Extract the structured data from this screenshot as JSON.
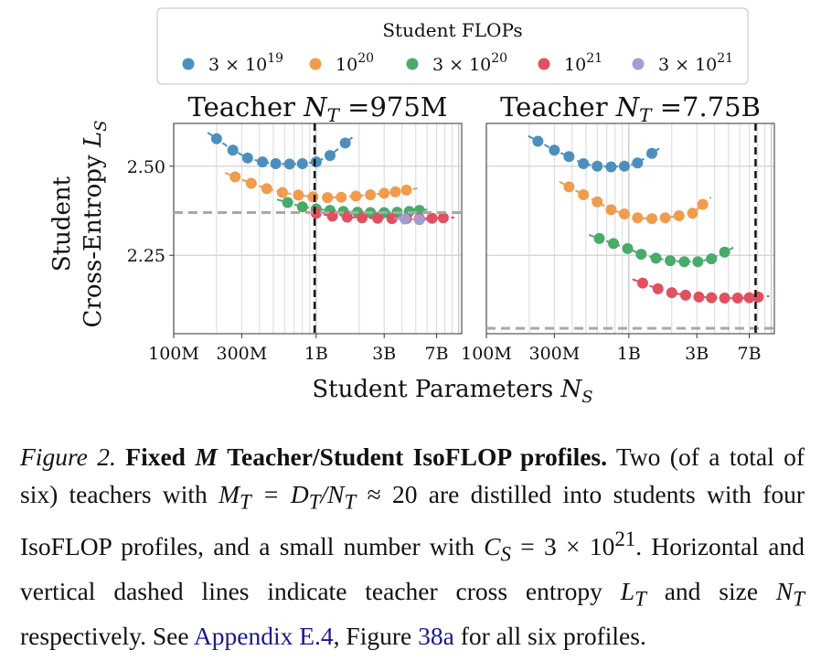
{
  "figure": {
    "legend": {
      "title": "Student FLOPs",
      "entries": [
        {
          "base": "3 × 10",
          "exp": "19",
          "color": "#4c8fbd"
        },
        {
          "base": "10",
          "exp": "20",
          "color": "#f09c4e"
        },
        {
          "base": "3 × 10",
          "exp": "20",
          "color": "#4aaa6a"
        },
        {
          "base": "10",
          "exp": "21",
          "color": "#e0505f"
        },
        {
          "base": "3 × 10",
          "exp": "21",
          "color": "#a99ad0"
        }
      ]
    },
    "y_label_line1": "Student",
    "y_label_line2": "Cross-Entropy",
    "y_label_symbol": "L",
    "y_label_sub": "S",
    "x_label": "Student Parameters",
    "x_label_symbol": "N",
    "x_label_sub": "S"
  },
  "chart_data": [
    {
      "type": "scatter",
      "title_prefix": "Teacher",
      "title_symbol": "N",
      "title_sub": "T",
      "title_suffix": "=975M",
      "xscale": "log",
      "xlim": [
        0.1,
        10.5
      ],
      "ylim": [
        2.03,
        2.62
      ],
      "xticks": [
        {
          "value": 0.1,
          "label": "100M"
        },
        {
          "value": 0.3,
          "label": "300M"
        },
        {
          "value": 1,
          "label": "1B"
        },
        {
          "value": 3,
          "label": "3B"
        },
        {
          "value": 7,
          "label": "7B"
        }
      ],
      "yticks": [
        {
          "value": 2.5,
          "label": "2.50"
        },
        {
          "value": 2.25,
          "label": "2.25"
        }
      ],
      "teacher_size": 0.975,
      "teacher_loss": 2.37,
      "series": [
        {
          "name": "3 × 10^19",
          "color": "#4c8fbd",
          "x": [
            0.2,
            0.26,
            0.33,
            0.42,
            0.52,
            0.65,
            0.8,
            1.0,
            1.25,
            1.6
          ],
          "y": [
            2.577,
            2.545,
            2.523,
            2.512,
            2.507,
            2.506,
            2.507,
            2.512,
            2.53,
            2.565
          ]
        },
        {
          "name": "10^20",
          "color": "#f09c4e",
          "x": [
            0.27,
            0.35,
            0.45,
            0.58,
            0.75,
            0.95,
            1.2,
            1.5,
            1.9,
            2.4,
            3.0,
            3.6,
            4.3
          ],
          "y": [
            2.47,
            2.452,
            2.437,
            2.426,
            2.419,
            2.414,
            2.412,
            2.413,
            2.416,
            2.42,
            2.424,
            2.428,
            2.433
          ]
        },
        {
          "name": "3 × 10^20",
          "color": "#4aaa6a",
          "x": [
            0.63,
            0.8,
            1.0,
            1.25,
            1.55,
            1.95,
            2.4,
            3.0,
            3.7,
            4.5,
            5.3
          ],
          "y": [
            2.398,
            2.386,
            2.38,
            2.376,
            2.373,
            2.371,
            2.37,
            2.37,
            2.371,
            2.373,
            2.376
          ]
        },
        {
          "name": "10^21",
          "color": "#e0505f",
          "x": [
            1.0,
            1.3,
            1.65,
            2.1,
            2.7,
            3.4,
            4.3,
            5.3,
            6.5,
            7.8
          ],
          "y": [
            2.368,
            2.36,
            2.357,
            2.355,
            2.354,
            2.353,
            2.353,
            2.353,
            2.354,
            2.355
          ]
        },
        {
          "name": "3 × 10^21",
          "color": "#a99ad0",
          "x": [
            4.2,
            5.3
          ],
          "y": [
            2.352,
            2.35
          ]
        }
      ]
    },
    {
      "type": "scatter",
      "title_prefix": "Teacher",
      "title_symbol": "N",
      "title_sub": "T",
      "title_suffix": "=7.75B",
      "xscale": "log",
      "xlim": [
        0.1,
        10.5
      ],
      "ylim": [
        2.03,
        2.62
      ],
      "xticks": [
        {
          "value": 0.1,
          "label": "100M"
        },
        {
          "value": 0.3,
          "label": "300M"
        },
        {
          "value": 1,
          "label": "1B"
        },
        {
          "value": 3,
          "label": "3B"
        },
        {
          "value": 7,
          "label": "7B"
        }
      ],
      "yticks": [
        {
          "value": 2.5,
          "label": ""
        },
        {
          "value": 2.25,
          "label": ""
        }
      ],
      "teacher_size": 7.75,
      "teacher_loss": 2.045,
      "series": [
        {
          "name": "3 × 10^19",
          "color": "#4c8fbd",
          "x": [
            0.23,
            0.3,
            0.38,
            0.48,
            0.6,
            0.75,
            0.93,
            1.15,
            1.45
          ],
          "y": [
            2.57,
            2.545,
            2.527,
            2.507,
            2.5,
            2.498,
            2.5,
            2.509,
            2.536
          ]
        },
        {
          "name": "10^20",
          "color": "#f09c4e",
          "x": [
            0.38,
            0.48,
            0.6,
            0.75,
            0.93,
            1.15,
            1.45,
            1.8,
            2.25,
            2.8,
            3.3
          ],
          "y": [
            2.442,
            2.42,
            2.4,
            2.378,
            2.366,
            2.355,
            2.353,
            2.355,
            2.361,
            2.368,
            2.393
          ]
        },
        {
          "name": "3 × 10^20",
          "color": "#4aaa6a",
          "x": [
            0.62,
            0.78,
            0.98,
            1.22,
            1.55,
            1.95,
            2.45,
            3.05,
            3.8,
            4.7
          ],
          "y": [
            2.297,
            2.283,
            2.269,
            2.253,
            2.242,
            2.235,
            2.232,
            2.232,
            2.24,
            2.259
          ]
        },
        {
          "name": "10^21",
          "color": "#e0505f",
          "x": [
            1.25,
            1.6,
            2.0,
            2.5,
            3.1,
            3.8,
            4.7,
            5.8,
            7.0,
            8.1
          ],
          "y": [
            2.172,
            2.156,
            2.145,
            2.138,
            2.133,
            2.131,
            2.13,
            2.13,
            2.131,
            2.133
          ]
        }
      ]
    }
  ],
  "caption": {
    "figure_label": "Figure 2.",
    "bold_a": "Fixed",
    "bold_m": "M",
    "bold_b": "Teacher/Student IsoFLOP profiles.",
    "text_1": "Two (of a total of six) teachers with",
    "math_1": "M",
    "math_1_sub": "T",
    "math_2": " = D",
    "math_2_sub": "T",
    "math_3": "/N",
    "math_3_sub": "T",
    "math_4": " ≈ 20",
    "text_2": "are distilled into students with four IsoFLOP profiles, and a small number with",
    "math_5": "C",
    "math_5_sub": "S",
    "math_6": " = 3 × 10",
    "math_6_sup": "21",
    "text_3": ". Horizontal and vertical dashed lines indicate teacher cross entropy",
    "math_7": "L",
    "math_7_sub": "T",
    "text_4": "and size",
    "math_8": "N",
    "math_8_sub": "T",
    "text_5": "respectively. See",
    "link_1": "Appendix E.4",
    "text_6": ", Figure",
    "link_2": "38a",
    "text_7": "for all six profiles."
  }
}
